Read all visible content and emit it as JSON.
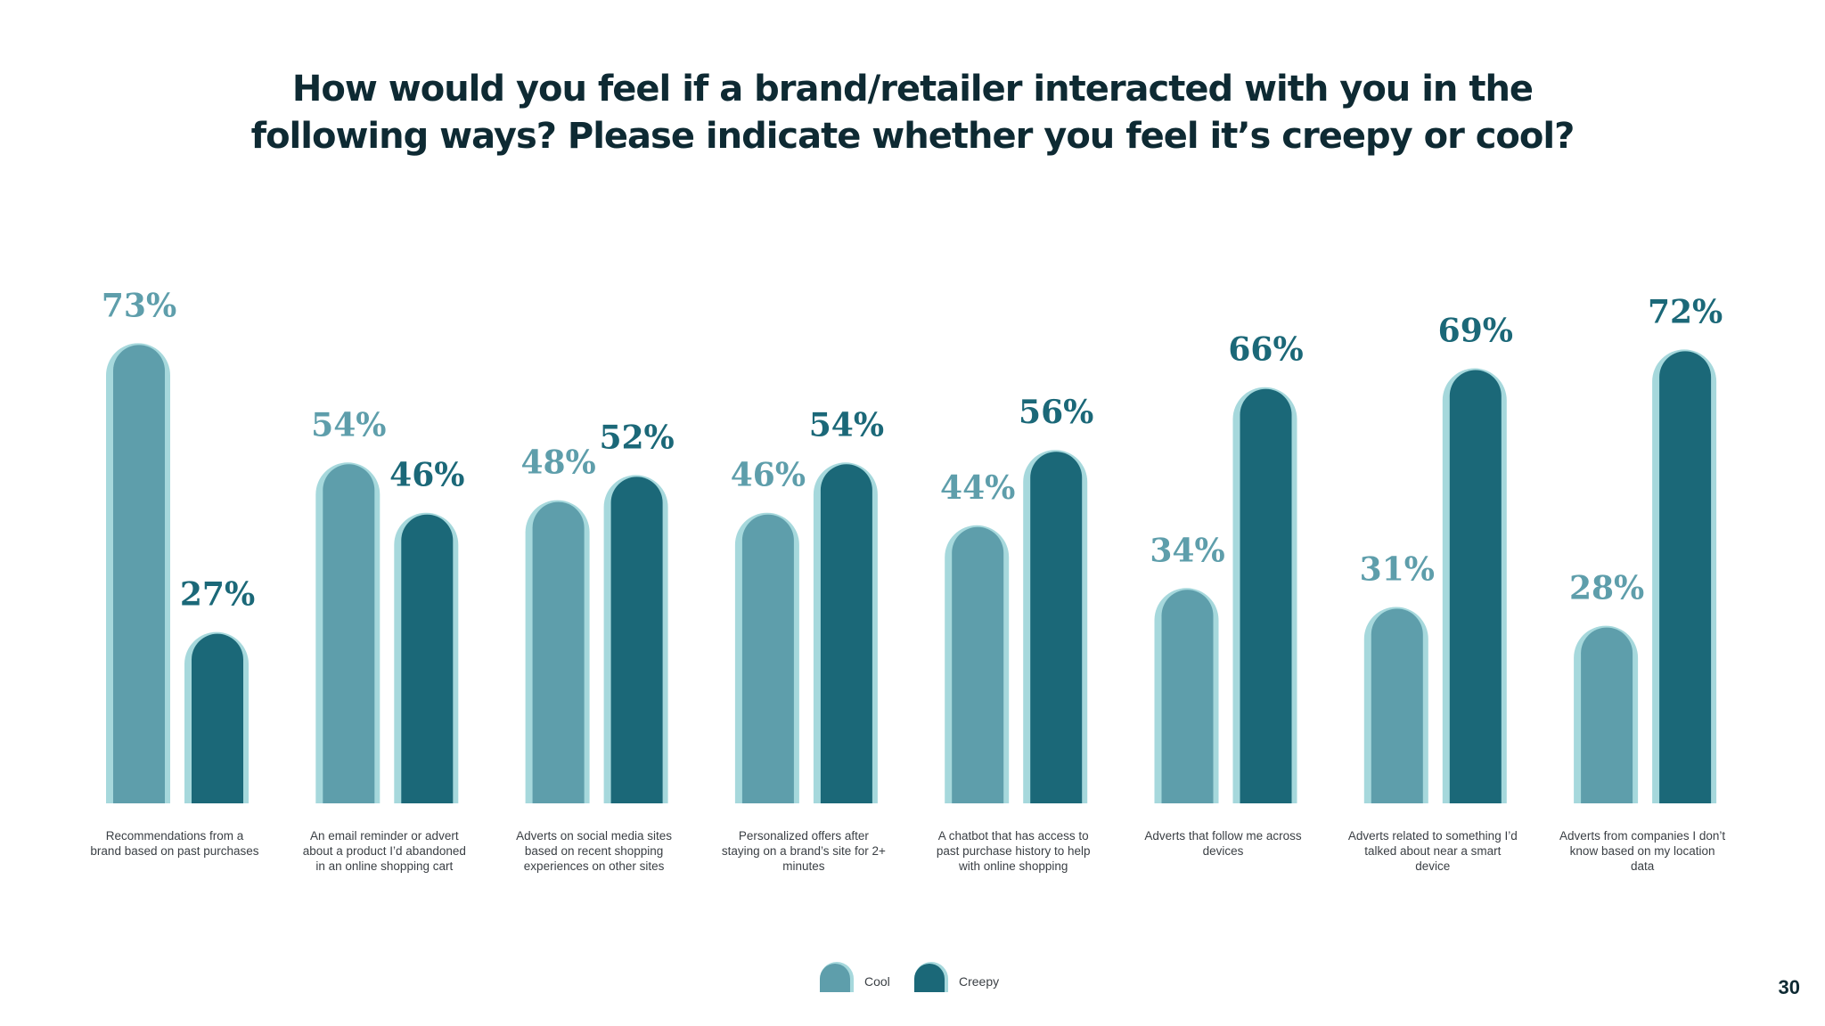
{
  "title_line1": "How would you feel if a brand/retailer interacted with you in the",
  "title_line2": "following ways? Please indicate whether you feel it’s creepy or cool?",
  "page_number": "30",
  "colors": {
    "cool": "#5e9eab",
    "creepy": "#1b6878",
    "shadow": "#a6d8dc"
  },
  "chart_data": {
    "type": "bar",
    "categories": [
      "Recommendations from a brand based on past purchases",
      "An email reminder or advert about a product I’d abandoned in an online shopping cart",
      "Adverts on social media sites based on recent shopping experiences on other sites",
      "Personalized offers after staying on a brand’s site for 2+ minutes",
      "A chatbot that has access to past purchase history to help with online shopping",
      "Adverts that follow me across devices",
      "Adverts related to something I’d talked about near a smart device",
      "Adverts from companies I don’t know based on my location data"
    ],
    "series": [
      {
        "name": "Cool",
        "values": [
          73,
          54,
          48,
          46,
          44,
          34,
          31,
          28
        ],
        "labels": [
          "73%",
          "54%",
          "48%",
          "46%",
          "44%",
          "34%",
          "31%",
          "28%"
        ]
      },
      {
        "name": "Creepy",
        "values": [
          27,
          46,
          52,
          54,
          56,
          66,
          69,
          72
        ],
        "labels": [
          "27%",
          "46%",
          "52%",
          "54%",
          "56%",
          "66%",
          "69%",
          "72%"
        ]
      }
    ],
    "unit": "%",
    "ylim": [
      0,
      100
    ],
    "grid": false,
    "legend_position": "bottom-center"
  }
}
